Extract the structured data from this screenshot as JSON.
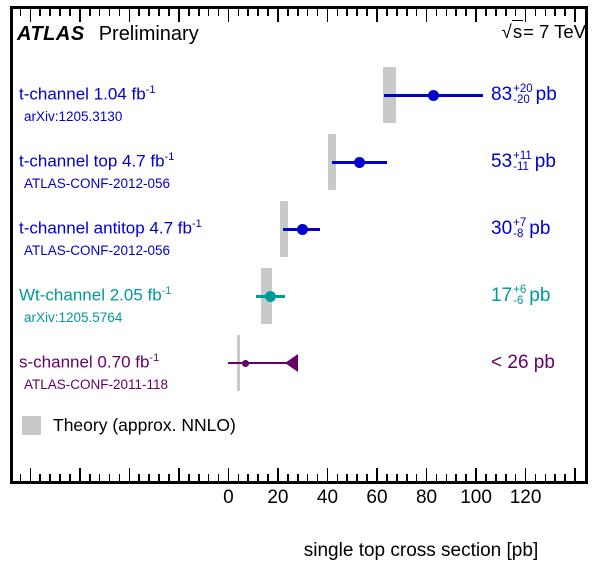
{
  "header": {
    "experiment": "ATLAS",
    "status": "Preliminary",
    "sqrt_symbol": "√",
    "sqrt_arg": "s",
    "energy_rest": "= 7 TeV"
  },
  "legend": {
    "label": "Theory (approx. NNLO)",
    "swatch_color": "#C9C9C9"
  },
  "axis": {
    "title": "single top cross section [pb]"
  },
  "chart_data": {
    "type": "scatter",
    "title": "ATLAS Preliminary",
    "annotation": "√s= 7 TeV",
    "xlabel": "single top cross section [pb]",
    "xlim": [
      -87,
      144
    ],
    "xticks": [
      0,
      20,
      40,
      60,
      80,
      100,
      120
    ],
    "major_tick_step": 20,
    "minor_tick_step": 4,
    "grid": false,
    "legend_label": "Theory (approx. NNLO)",
    "theory_band_color": "#C9C9C9",
    "measurements": [
      {
        "label": "t-channel 1.04 fb",
        "label_sup": "-1",
        "ref": "arXiv:1205.3130",
        "value": 83,
        "err_up": 20,
        "err_down": 20,
        "display": {
          "value": "83",
          "sup": "+20",
          "sub": "-20",
          "unit": "pb"
        },
        "theory_band": [
          62.4,
          67.6
        ],
        "color": "#0000CD",
        "marker": "circle"
      },
      {
        "label": "t-channel top 4.7 fb",
        "label_sup": "-1",
        "ref": "ATLAS-CONF-2012-056",
        "value": 53,
        "err_up": 11,
        "err_down": 11,
        "display": {
          "value": "53",
          "sup": "+11",
          "sub": "-11",
          "unit": "pb"
        },
        "theory_band": [
          40.4,
          43.6
        ],
        "color": "#0000CD",
        "marker": "circle"
      },
      {
        "label": "t-channel antitop 4.7 fb",
        "label_sup": "-1",
        "ref": "ATLAS-CONF-2012-056",
        "value": 30,
        "err_up": 7,
        "err_down": 8,
        "display": {
          "value": "30",
          "sup": "+7",
          "sub": "-8",
          "unit": "pb"
        },
        "theory_band": [
          20.8,
          24.0
        ],
        "color": "#0000CD",
        "marker": "circle"
      },
      {
        "label": "Wt-channel 2.05 fb",
        "label_sup": "-1",
        "ref": "arXiv:1205.5764",
        "value": 17,
        "err_up": 6,
        "err_down": 6,
        "display": {
          "value": "17",
          "sup": "+6",
          "sub": "-6",
          "unit": "pb"
        },
        "theory_band": [
          13.2,
          17.6
        ],
        "color": "#009A9A",
        "marker": "circle"
      },
      {
        "label": "s-channel 0.70 fb",
        "label_sup": "-1",
        "ref": "ATLAS-CONF-2011-118",
        "limit": 26,
        "display": {
          "text": "< 26 pb"
        },
        "line_range": [
          0,
          26.5
        ],
        "dot": 7,
        "theory_band": [
          3.5,
          4.5
        ],
        "color": "#660066",
        "marker": "limit-arrow"
      }
    ]
  }
}
